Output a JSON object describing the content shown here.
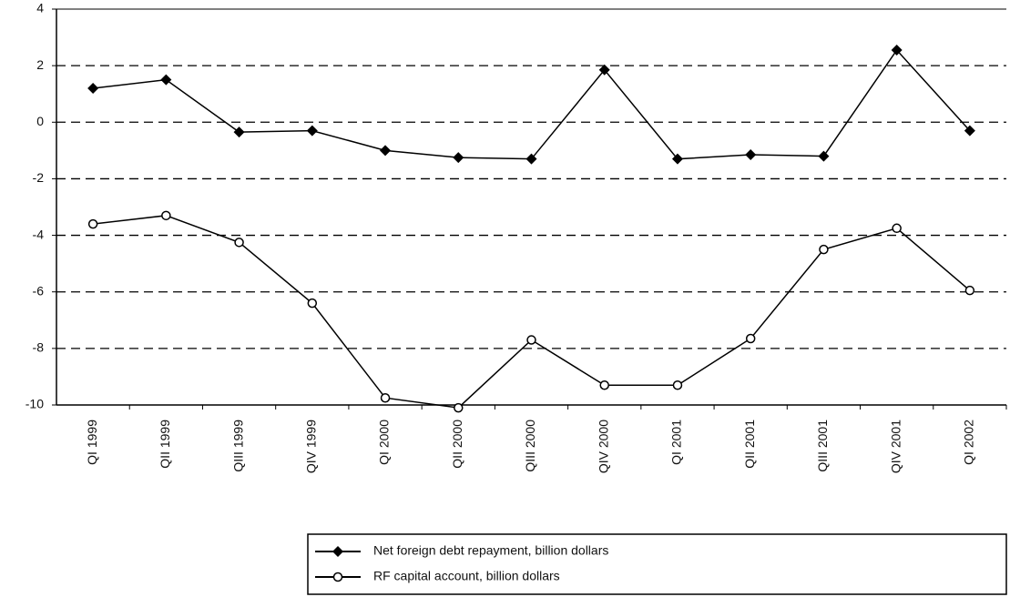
{
  "chart_data": {
    "type": "line",
    "categories": [
      "QI 1999",
      "QII 1999",
      "QIII 1999",
      "QIV 1999",
      "QI 2000",
      "QII 2000",
      "QIII 2000",
      "QIV 2000",
      "QI 2001",
      "QII 2001",
      "QIII 2001",
      "QIV 2001",
      "QI 2002"
    ],
    "series": [
      {
        "name": "Net foreign debt repayment, billion dollars",
        "color": "#000000",
        "marker": "diamond",
        "values": [
          1.2,
          1.5,
          -0.35,
          -0.3,
          -1.0,
          -1.25,
          -1.3,
          1.85,
          -1.3,
          -1.15,
          -1.2,
          2.55,
          -0.3
        ]
      },
      {
        "name": "RF capital account, billion dollars",
        "color": "#000000",
        "marker": "circle",
        "values": [
          -3.6,
          -3.3,
          -4.25,
          -6.4,
          -9.75,
          -10.1,
          -7.7,
          -9.3,
          -9.3,
          -7.65,
          -4.5,
          -3.75,
          -5.95
        ]
      }
    ],
    "ylim": [
      -10,
      4
    ],
    "yticks": [
      -10,
      -8,
      -6,
      -4,
      -2,
      0,
      2,
      4
    ],
    "grid": true,
    "legend": "bottom-right"
  }
}
